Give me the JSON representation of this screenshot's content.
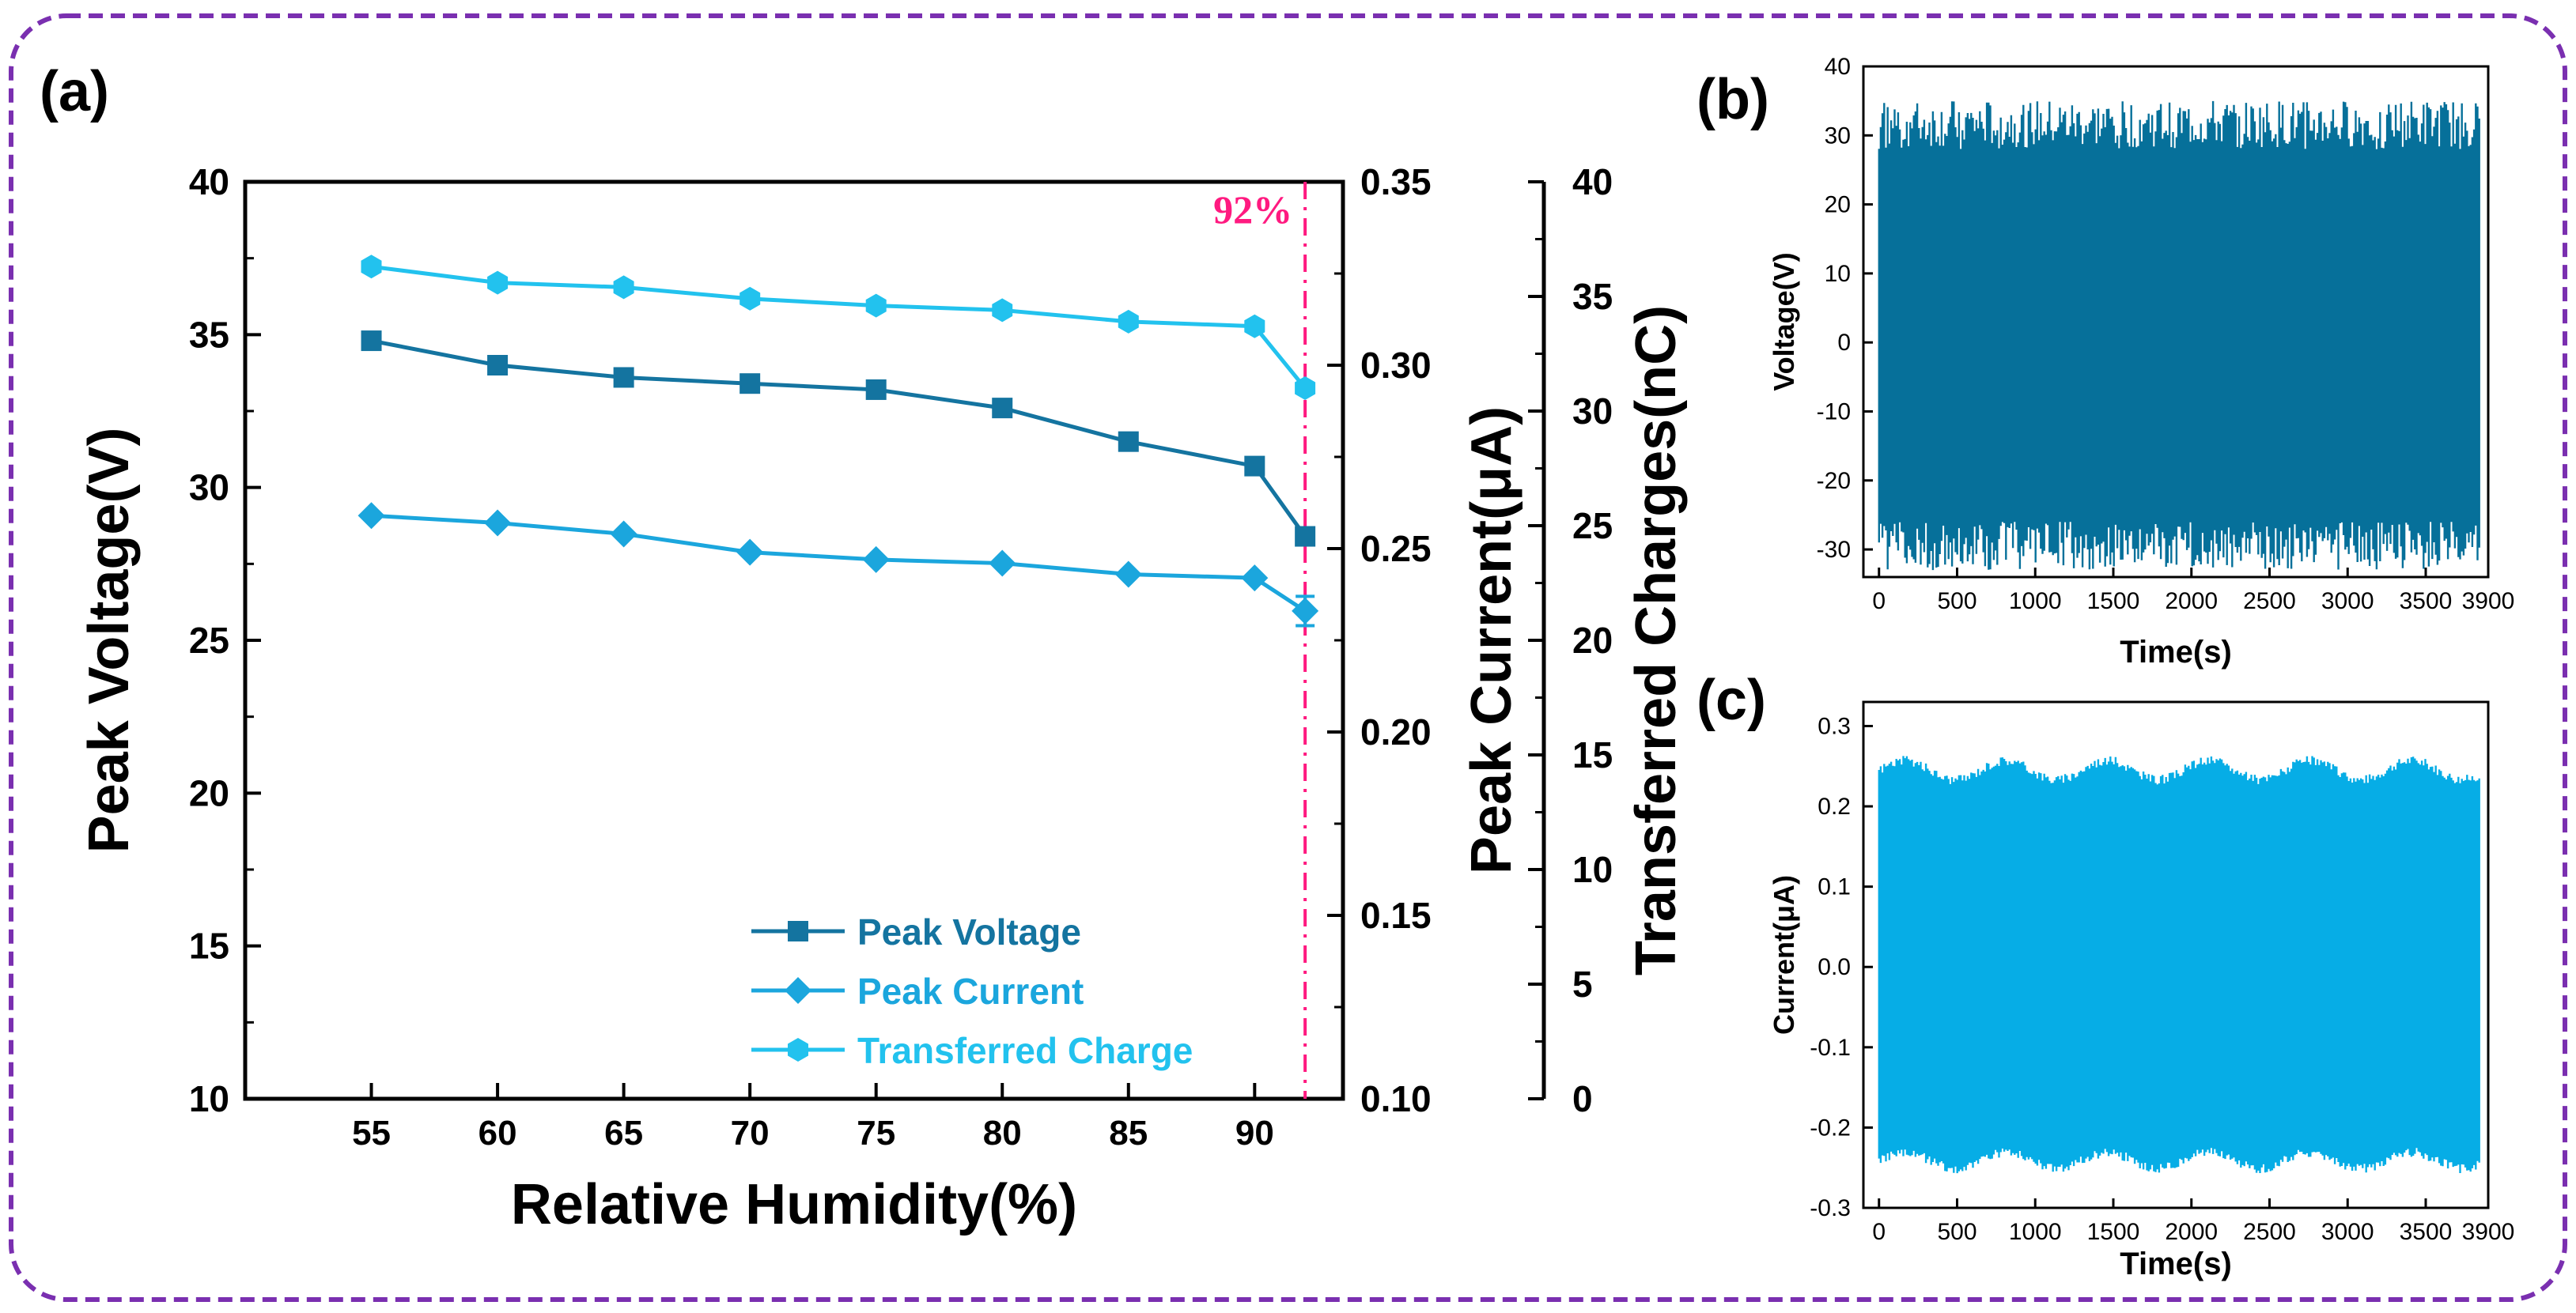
{
  "colors": {
    "frame": "#7a2fb0",
    "voltage": "#1474a0",
    "current": "#1ba6dd",
    "charge": "#22c2ee",
    "marker_line": "#ff1a80",
    "wave_b": "#06709a",
    "wave_c": "#06ade6"
  },
  "panels": {
    "a": {
      "label": "(a)"
    },
    "b": {
      "label": "(b)"
    },
    "c": {
      "label": "(c)"
    }
  },
  "chart_data": [
    {
      "id": "a",
      "type": "line",
      "xlabel": "Relative Humidity(%)",
      "x": [
        55,
        60,
        65,
        70,
        75,
        80,
        85,
        90,
        92
      ],
      "xlim": [
        50,
        93.5
      ],
      "xticks": [
        "55",
        "60",
        "65",
        "70",
        "75",
        "80",
        "85",
        "90"
      ],
      "annotation": {
        "text": "92%",
        "x": 92
      },
      "axes": {
        "left": {
          "label": "Peak Voltage(V)",
          "range": [
            10,
            40
          ],
          "ticks": [
            "10",
            "15",
            "20",
            "25",
            "30",
            "35",
            "40"
          ]
        },
        "right1": {
          "label": "Peak Current(μA)",
          "range": [
            0.1,
            0.35
          ],
          "ticks": [
            "0.10",
            "0.15",
            "0.20",
            "0.25",
            "0.30",
            "0.35"
          ]
        },
        "right2": {
          "label": "Transferred Charges(nC)",
          "range": [
            0,
            40
          ],
          "ticks": [
            "0",
            "5",
            "10",
            "15",
            "20",
            "25",
            "30",
            "35",
            "40"
          ]
        }
      },
      "series": [
        {
          "name": "Peak Voltage",
          "axis": "left",
          "marker": "square",
          "values": [
            34.8,
            34.0,
            33.6,
            33.4,
            33.2,
            32.6,
            31.5,
            30.7,
            28.4
          ]
        },
        {
          "name": "Peak Current",
          "axis": "right1",
          "marker": "diamond",
          "values": [
            0.259,
            0.257,
            0.254,
            0.249,
            0.247,
            0.246,
            0.243,
            0.242,
            0.233
          ],
          "error_last": 0.004
        },
        {
          "name": "Transferred Charge",
          "axis": "right2",
          "marker": "hexagon",
          "values": [
            36.3,
            35.6,
            35.4,
            34.9,
            34.6,
            34.4,
            33.9,
            33.7,
            31.0
          ]
        }
      ],
      "legend": {
        "position": "bottom-right",
        "entries": [
          "Peak Voltage",
          "Peak Current",
          "Transferred Charge"
        ]
      }
    },
    {
      "id": "b",
      "type": "line",
      "xlabel": "Time(s)",
      "ylabel": "Voltage(V)",
      "xlim": [
        -100,
        3900
      ],
      "ylim": [
        -34,
        40
      ],
      "xticks": [
        "0",
        "500",
        "1000",
        "1500",
        "2000",
        "2500",
        "3000",
        "3500",
        "3900"
      ],
      "yticks": [
        "-30",
        "-20",
        "-10",
        "0",
        "10",
        "20",
        "30",
        "40"
      ],
      "signal": {
        "x_range": [
          0,
          3850
        ],
        "dense_upper": 28,
        "dense_lower": -26,
        "peak_upper": 35,
        "peak_lower": -33
      }
    },
    {
      "id": "c",
      "type": "line",
      "xlabel": "Time(s)",
      "ylabel": "Current(μA)",
      "xlim": [
        -100,
        3900
      ],
      "ylim": [
        -0.3,
        0.33
      ],
      "xticks": [
        "0",
        "500",
        "1000",
        "1500",
        "2000",
        "2500",
        "3000",
        "3500",
        "3900"
      ],
      "yticks": [
        "-0.3",
        "-0.2",
        "-0.1",
        "0.0",
        "0.1",
        "0.2",
        "0.3"
      ],
      "signal": {
        "x_range": [
          0,
          3850
        ],
        "upper_mean": 0.245,
        "upper_swing": 0.012,
        "lower_mean": -0.235,
        "lower_swing": 0.01
      }
    }
  ]
}
